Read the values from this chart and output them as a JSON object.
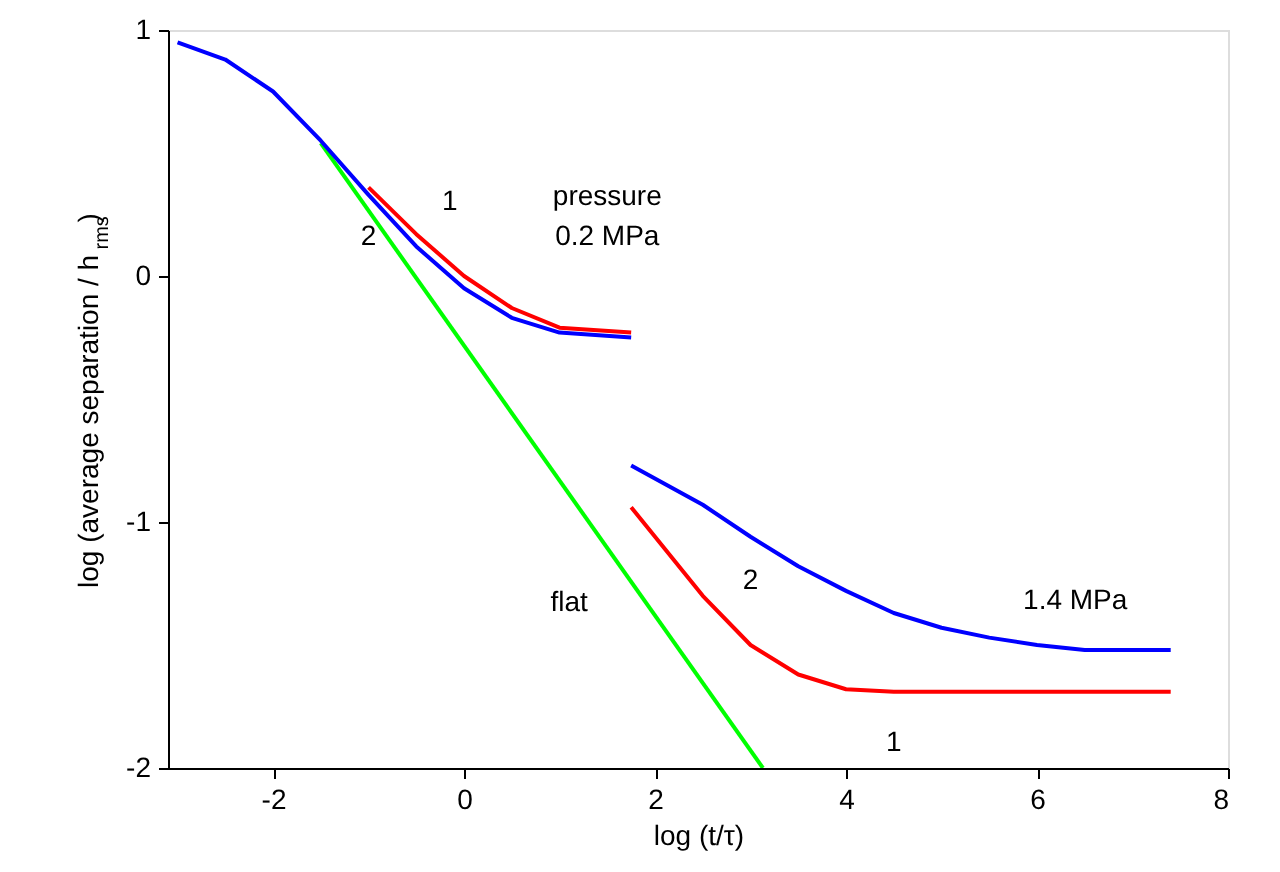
{
  "chart_data": {
    "type": "line",
    "xlabel": "log (t/τ)",
    "ylabel": "log (average separation / h$_{rms}$)",
    "xlim": [
      -3.1,
      8
    ],
    "ylim": [
      -2,
      1
    ],
    "xticks": [
      -2,
      0,
      2,
      4,
      6,
      8
    ],
    "yticks": [
      {
        "value": -2,
        "label": "-2"
      },
      {
        "value": -1,
        "label": "-1"
      },
      {
        "value": 0,
        "label": "0"
      },
      {
        "value": 1,
        "label": "1"
      }
    ],
    "grid": false,
    "marker": "none",
    "line_style": "solid",
    "series": [
      {
        "color": "#00ff00",
        "x": [
          -1.5,
          3.13
        ],
        "values": [
          0.54,
          -2.0
        ]
      },
      {
        "color": "#0000ff",
        "x": [
          -3,
          -2.5,
          -2,
          -1.5,
          -1,
          -0.5,
          0,
          0.5,
          1,
          1.75
        ],
        "values": [
          0.95,
          0.88,
          0.75,
          0.55,
          0.33,
          0.12,
          -0.05,
          -0.17,
          -0.23,
          -0.25
        ]
      },
      {
        "color": "#ff0000",
        "x": [
          -1,
          -0.5,
          0,
          0.5,
          1,
          1.75
        ],
        "values": [
          0.36,
          0.17,
          0.0,
          -0.13,
          -0.21,
          -0.23
        ]
      },
      {
        "color": "#ff0000",
        "x": [
          1.75,
          2,
          2.5,
          3,
          3.5,
          4,
          4.5,
          7.4
        ],
        "values": [
          -0.94,
          -1.06,
          -1.3,
          -1.5,
          -1.62,
          -1.68,
          -1.69,
          -1.69
        ]
      },
      {
        "color": "#0000ff",
        "x": [
          1.75,
          2.5,
          3,
          3.5,
          4,
          4.5,
          5,
          5.5,
          6,
          6.5,
          7.4
        ],
        "values": [
          -0.77,
          -0.93,
          -1.06,
          -1.18,
          -1.28,
          -1.37,
          -1.43,
          -1.47,
          -1.5,
          -1.52,
          -1.52
        ]
      }
    ],
    "annotations": [
      "pressure",
      "0.2 MPa",
      "1",
      "2",
      "1.4 MPa",
      "2",
      "1",
      "flat"
    ]
  }
}
